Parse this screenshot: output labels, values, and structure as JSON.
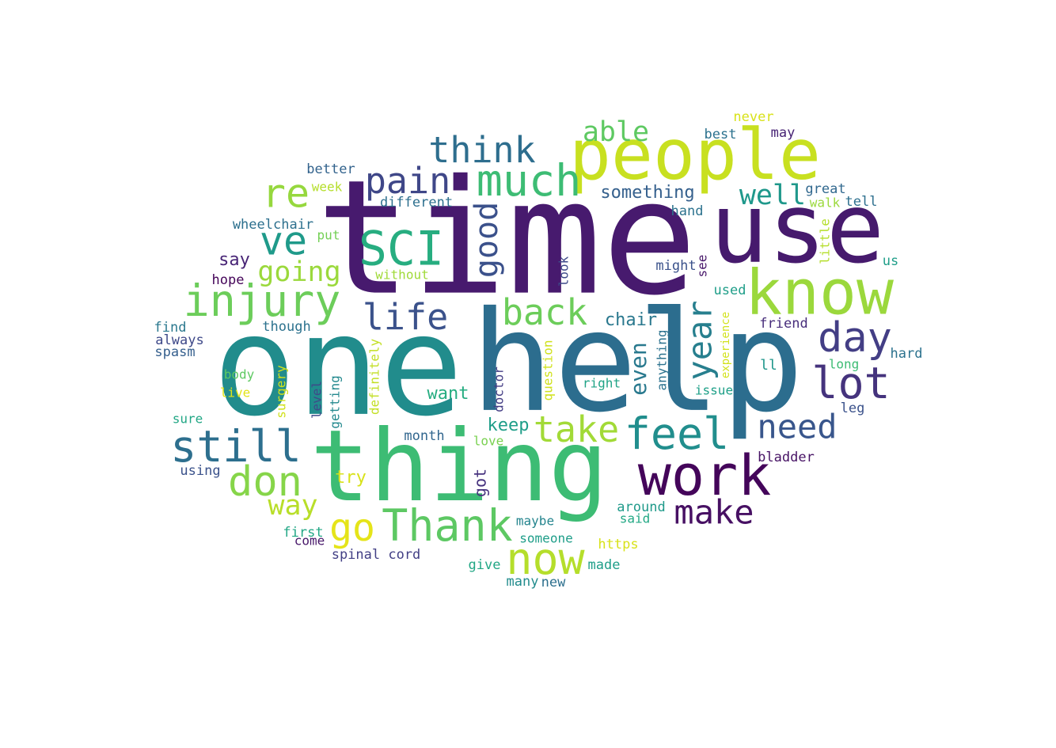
{
  "words": [
    {
      "text": "time",
      "weight": 100,
      "color": "#471a6e"
    },
    {
      "text": "one",
      "weight": 100,
      "color": "#218c8c"
    },
    {
      "text": "help",
      "weight": 92,
      "color": "#2c6d8e"
    },
    {
      "text": "use",
      "weight": 75,
      "color": "#461a6d"
    },
    {
      "text": "thing",
      "weight": 78,
      "color": "#3dbc74"
    },
    {
      "text": "people",
      "weight": 55,
      "color": "#c8e020"
    },
    {
      "text": "know",
      "weight": 50,
      "color": "#9bd83c"
    },
    {
      "text": "work",
      "weight": 45,
      "color": "#44055a"
    },
    {
      "text": "SCI",
      "weight": 42,
      "color": "#27ad80"
    },
    {
      "text": "much",
      "weight": 38,
      "color": "#3dbc74"
    },
    {
      "text": "injury",
      "weight": 38,
      "color": "#6ccd5a"
    },
    {
      "text": "still",
      "weight": 38,
      "color": "#2d6f8e"
    },
    {
      "text": "Thank",
      "weight": 38,
      "color": "#5dc863"
    },
    {
      "text": "feel",
      "weight": 38,
      "color": "#218e8d"
    },
    {
      "text": "lot",
      "weight": 38,
      "color": "#45337d"
    },
    {
      "text": "now",
      "weight": 38,
      "color": "#b5de2b"
    },
    {
      "text": "day",
      "weight": 36,
      "color": "#433e85"
    },
    {
      "text": "don",
      "weight": 36,
      "color": "#86d549"
    },
    {
      "text": "re",
      "weight": 34,
      "color": "#96d83e"
    },
    {
      "text": "ve",
      "weight": 34,
      "color": "#1f9a8a"
    },
    {
      "text": "back",
      "weight": 33,
      "color": "#6ccd5a"
    },
    {
      "text": "take",
      "weight": 33,
      "color": "#a2da37"
    },
    {
      "text": "think",
      "weight": 32,
      "color": "#2e6e8e"
    },
    {
      "text": "pain",
      "weight": 32,
      "color": "#3f4788"
    },
    {
      "text": "year",
      "weight": 32,
      "color": "#277f8e"
    },
    {
      "text": "life",
      "weight": 32,
      "color": "#3b528b"
    },
    {
      "text": "go",
      "weight": 32,
      "color": "#e5e419"
    },
    {
      "text": "need",
      "weight": 32,
      "color": "#39568c"
    },
    {
      "text": "make",
      "weight": 32,
      "color": "#471063"
    },
    {
      "text": "good",
      "weight": 30,
      "color": "#3b518b"
    },
    {
      "text": "going",
      "weight": 28,
      "color": "#9bd93c"
    },
    {
      "text": "well",
      "weight": 27,
      "color": "#1f988b"
    },
    {
      "text": "able",
      "weight": 27,
      "color": "#5ec962"
    },
    {
      "text": "way",
      "weight": 26,
      "color": "#b8de29"
    },
    {
      "text": "even",
      "weight": 22,
      "color": "#29798e"
    },
    {
      "text": "something",
      "weight": 17,
      "color": "#35608d"
    },
    {
      "text": "chair",
      "weight": 17,
      "color": "#2a788e"
    },
    {
      "text": "want",
      "weight": 17,
      "color": "#26ad81"
    },
    {
      "text": "keep",
      "weight": 17,
      "color": "#1f9e89"
    },
    {
      "text": "say",
      "weight": 17,
      "color": "#482576"
    },
    {
      "text": "got",
      "weight": 16,
      "color": "#46327e"
    },
    {
      "text": "try",
      "weight": 17,
      "color": "#d8e219"
    },
    {
      "text": "month",
      "weight": 14,
      "color": "#31668e"
    },
    {
      "text": "wheelchair",
      "weight": 14,
      "color": "#2d708e"
    },
    {
      "text": "different",
      "weight": 14,
      "color": "#2d6f8e"
    },
    {
      "text": "better",
      "weight": 14,
      "color": "#33638d"
    },
    {
      "text": "week",
      "weight": 13,
      "color": "#b5de2b"
    },
    {
      "text": "put",
      "weight": 13,
      "color": "#74d055"
    },
    {
      "text": "hope",
      "weight": 13,
      "color": "#450559"
    },
    {
      "text": "without",
      "weight": 13,
      "color": "#a0da39"
    },
    {
      "text": "find",
      "weight": 14,
      "color": "#2a788e"
    },
    {
      "text": "always",
      "weight": 14,
      "color": "#3e4989"
    },
    {
      "text": "spasm",
      "weight": 14,
      "color": "#355f8d"
    },
    {
      "text": "though",
      "weight": 14,
      "color": "#2c728e"
    },
    {
      "text": "body",
      "weight": 13,
      "color": "#5ec962"
    },
    {
      "text": "live",
      "weight": 13,
      "color": "#e2e418"
    },
    {
      "text": "sure",
      "weight": 13,
      "color": "#22a785"
    },
    {
      "text": "using",
      "weight": 14,
      "color": "#3b528b"
    },
    {
      "text": "surgery",
      "weight": 13,
      "color": "#d0e11c"
    },
    {
      "text": "level",
      "weight": 13,
      "color": "#3e4a89"
    },
    {
      "text": "getting",
      "weight": 13,
      "color": "#23898e"
    },
    {
      "text": "definitely",
      "weight": 13,
      "color": "#c2df23"
    },
    {
      "text": "doctor",
      "weight": 13,
      "color": "#433d84"
    },
    {
      "text": "question",
      "weight": 13,
      "color": "#d0e11c"
    },
    {
      "text": "right",
      "weight": 13,
      "color": "#20a386"
    },
    {
      "text": "love",
      "weight": 13,
      "color": "#7ad151"
    },
    {
      "text": "look",
      "weight": 13,
      "color": "#3e4989"
    },
    {
      "text": "anything",
      "weight": 13,
      "color": "#2c728e"
    },
    {
      "text": "experience",
      "weight": 11,
      "color": "#d2e21b"
    },
    {
      "text": "issue",
      "weight": 13,
      "color": "#1fa088"
    },
    {
      "text": "might",
      "weight": 14,
      "color": "#3b528b"
    },
    {
      "text": "see",
      "weight": 13,
      "color": "#48186a"
    },
    {
      "text": "used",
      "weight": 14,
      "color": "#1f9e89"
    },
    {
      "text": "hand",
      "weight": 14,
      "color": "#2c728e"
    },
    {
      "text": "best",
      "weight": 14,
      "color": "#2c728e"
    },
    {
      "text": "may",
      "weight": 14,
      "color": "#482475"
    },
    {
      "text": "never",
      "weight": 14,
      "color": "#d8e219"
    },
    {
      "text": "great",
      "weight": 14,
      "color": "#31688e"
    },
    {
      "text": "walk",
      "weight": 13,
      "color": "#9bd93c"
    },
    {
      "text": "tell",
      "weight": 14,
      "color": "#2d6f8e"
    },
    {
      "text": "little",
      "weight": 13,
      "color": "#b5de2b"
    },
    {
      "text": "us",
      "weight": 14,
      "color": "#1f9e89"
    },
    {
      "text": "friend",
      "weight": 14,
      "color": "#472d7b"
    },
    {
      "text": "ll",
      "weight": 15,
      "color": "#1f968b"
    },
    {
      "text": "long",
      "weight": 13,
      "color": "#3dbc74"
    },
    {
      "text": "hard",
      "weight": 14,
      "color": "#2c728e"
    },
    {
      "text": "leg",
      "weight": 14,
      "color": "#3b528b"
    },
    {
      "text": "bladder",
      "weight": 14,
      "color": "#471365"
    },
    {
      "text": "around",
      "weight": 14,
      "color": "#1f9a8a"
    },
    {
      "text": "said",
      "weight": 13,
      "color": "#22a884"
    },
    {
      "text": "maybe",
      "weight": 13,
      "color": "#25858e"
    },
    {
      "text": "someone",
      "weight": 13,
      "color": "#1f9e89"
    },
    {
      "text": "https",
      "weight": 14,
      "color": "#d8e219"
    },
    {
      "text": "made",
      "weight": 14,
      "color": "#1f9e89"
    },
    {
      "text": "give",
      "weight": 14,
      "color": "#22a785"
    },
    {
      "text": "many",
      "weight": 14,
      "color": "#228c8d"
    },
    {
      "text": "new",
      "weight": 14,
      "color": "#2d708e"
    },
    {
      "text": "first",
      "weight": 14,
      "color": "#22a785"
    },
    {
      "text": "come",
      "weight": 13,
      "color": "#48186a"
    },
    {
      "text": "spinal cord",
      "weight": 14,
      "color": "#423f85"
    }
  ]
}
